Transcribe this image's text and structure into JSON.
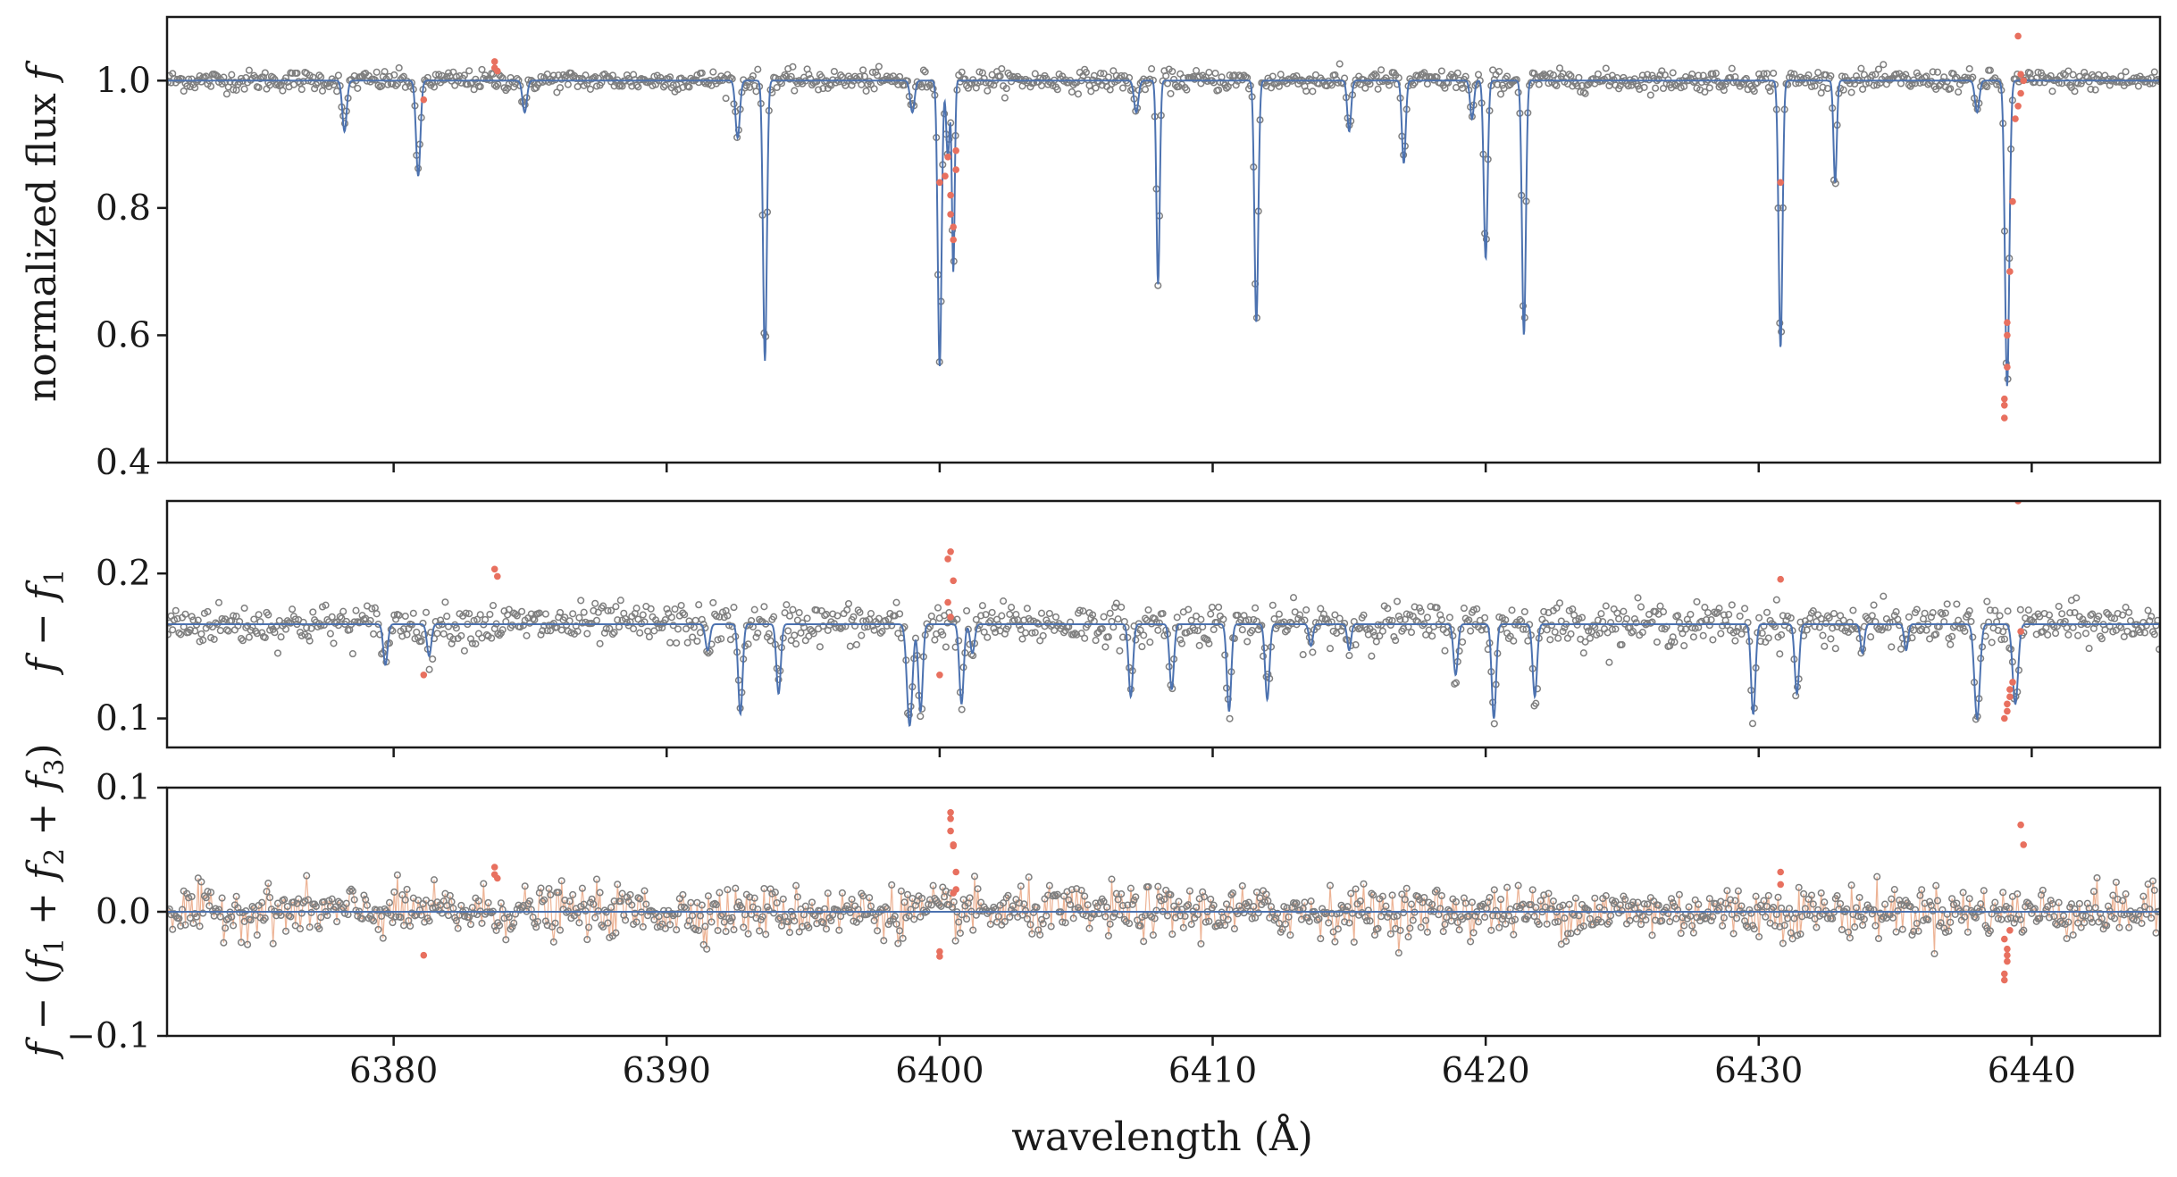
{
  "chart_data": [
    {
      "panel": "top",
      "type": "line",
      "ylabel_text": "normalized flux",
      "ylabel_var": "f",
      "xlim": [
        6371.7,
        6444.7
      ],
      "ylim": [
        0.4,
        1.1
      ],
      "yticks": [
        0.4,
        0.6,
        0.8,
        1.0
      ],
      "ytick_labels": [
        "0.4",
        "0.6",
        "0.8",
        "1.0"
      ],
      "continuum": 1.0,
      "lines": [
        {
          "x": 6378.2,
          "depth": 0.08,
          "width": 0.08
        },
        {
          "x": 6380.9,
          "depth": 0.15,
          "width": 0.08
        },
        {
          "x": 6384.8,
          "depth": 0.05,
          "width": 0.08
        },
        {
          "x": 6392.6,
          "depth": 0.09,
          "width": 0.08
        },
        {
          "x": 6393.6,
          "depth": 0.44,
          "width": 0.07
        },
        {
          "x": 6399.0,
          "depth": 0.05,
          "width": 0.08
        },
        {
          "x": 6400.0,
          "depth": 0.45,
          "width": 0.07
        },
        {
          "x": 6400.3,
          "depth": 0.12,
          "width": 0.06
        },
        {
          "x": 6400.5,
          "depth": 0.3,
          "width": 0.05
        },
        {
          "x": 6407.2,
          "depth": 0.05,
          "width": 0.08
        },
        {
          "x": 6408.0,
          "depth": 0.32,
          "width": 0.06
        },
        {
          "x": 6411.6,
          "depth": 0.38,
          "width": 0.07
        },
        {
          "x": 6415.0,
          "depth": 0.08,
          "width": 0.07
        },
        {
          "x": 6417.0,
          "depth": 0.13,
          "width": 0.07
        },
        {
          "x": 6419.5,
          "depth": 0.06,
          "width": 0.07
        },
        {
          "x": 6420.0,
          "depth": 0.28,
          "width": 0.07
        },
        {
          "x": 6421.4,
          "depth": 0.4,
          "width": 0.07
        },
        {
          "x": 6430.8,
          "depth": 0.42,
          "width": 0.07
        },
        {
          "x": 6432.8,
          "depth": 0.16,
          "width": 0.06
        },
        {
          "x": 6438.0,
          "depth": 0.05,
          "width": 0.08
        },
        {
          "x": 6439.1,
          "depth": 0.48,
          "width": 0.08
        }
      ],
      "noise": 0.008,
      "outliers": [
        {
          "x": 6381.1,
          "y": 0.97
        },
        {
          "x": 6383.7,
          "y": 1.03
        },
        {
          "x": 6383.7,
          "y": 1.02
        },
        {
          "x": 6383.8,
          "y": 1.015
        },
        {
          "x": 6400.0,
          "y": 0.84
        },
        {
          "x": 6400.2,
          "y": 0.85
        },
        {
          "x": 6400.3,
          "y": 0.88
        },
        {
          "x": 6400.4,
          "y": 0.82
        },
        {
          "x": 6400.4,
          "y": 0.79
        },
        {
          "x": 6400.5,
          "y": 0.77
        },
        {
          "x": 6400.5,
          "y": 0.75
        },
        {
          "x": 6400.6,
          "y": 0.86
        },
        {
          "x": 6400.6,
          "y": 0.89
        },
        {
          "x": 6430.8,
          "y": 0.84
        },
        {
          "x": 6439.0,
          "y": 0.47
        },
        {
          "x": 6439.0,
          "y": 0.49
        },
        {
          "x": 6439.0,
          "y": 0.5
        },
        {
          "x": 6439.1,
          "y": 0.55
        },
        {
          "x": 6439.1,
          "y": 0.6
        },
        {
          "x": 6439.1,
          "y": 0.62
        },
        {
          "x": 6439.2,
          "y": 0.7
        },
        {
          "x": 6439.3,
          "y": 0.81
        },
        {
          "x": 6439.4,
          "y": 0.94
        },
        {
          "x": 6439.5,
          "y": 0.96
        },
        {
          "x": 6439.6,
          "y": 0.98
        },
        {
          "x": 6439.6,
          "y": 1.01
        },
        {
          "x": 6439.5,
          "y": 1.07
        },
        {
          "x": 6439.7,
          "y": 1.0
        }
      ]
    },
    {
      "panel": "middle",
      "type": "line",
      "ylabel_var": "f",
      "ylabel_sub": "1",
      "xlim": [
        6371.7,
        6444.7
      ],
      "ylim": [
        0.08,
        0.25
      ],
      "yticks": [
        0.1,
        0.2
      ],
      "ytick_labels": [
        "0.1",
        "0.2"
      ],
      "continuum": 0.165,
      "lines": [
        {
          "x": 6379.7,
          "depth": 0.028,
          "width": 0.08
        },
        {
          "x": 6381.3,
          "depth": 0.022,
          "width": 0.08
        },
        {
          "x": 6391.5,
          "depth": 0.018,
          "width": 0.08
        },
        {
          "x": 6392.7,
          "depth": 0.062,
          "width": 0.08
        },
        {
          "x": 6394.1,
          "depth": 0.048,
          "width": 0.08
        },
        {
          "x": 6398.9,
          "depth": 0.07,
          "width": 0.1
        },
        {
          "x": 6399.3,
          "depth": 0.06,
          "width": 0.08
        },
        {
          "x": 6400.8,
          "depth": 0.055,
          "width": 0.08
        },
        {
          "x": 6401.2,
          "depth": 0.02,
          "width": 0.08
        },
        {
          "x": 6407.0,
          "depth": 0.05,
          "width": 0.08
        },
        {
          "x": 6408.5,
          "depth": 0.045,
          "width": 0.08
        },
        {
          "x": 6410.6,
          "depth": 0.06,
          "width": 0.08
        },
        {
          "x": 6412.0,
          "depth": 0.052,
          "width": 0.08
        },
        {
          "x": 6413.6,
          "depth": 0.015,
          "width": 0.07
        },
        {
          "x": 6415.0,
          "depth": 0.018,
          "width": 0.07
        },
        {
          "x": 6418.9,
          "depth": 0.035,
          "width": 0.08
        },
        {
          "x": 6420.3,
          "depth": 0.065,
          "width": 0.08
        },
        {
          "x": 6421.8,
          "depth": 0.05,
          "width": 0.08
        },
        {
          "x": 6429.8,
          "depth": 0.062,
          "width": 0.08
        },
        {
          "x": 6431.4,
          "depth": 0.048,
          "width": 0.08
        },
        {
          "x": 6433.8,
          "depth": 0.02,
          "width": 0.07
        },
        {
          "x": 6435.4,
          "depth": 0.018,
          "width": 0.07
        },
        {
          "x": 6438.0,
          "depth": 0.065,
          "width": 0.1
        },
        {
          "x": 6439.4,
          "depth": 0.055,
          "width": 0.1
        }
      ],
      "noise": 0.007,
      "outliers": [
        {
          "x": 6381.1,
          "y": 0.13
        },
        {
          "x": 6383.7,
          "y": 0.203
        },
        {
          "x": 6383.8,
          "y": 0.198
        },
        {
          "x": 6400.0,
          "y": 0.13
        },
        {
          "x": 6400.3,
          "y": 0.21
        },
        {
          "x": 6400.4,
          "y": 0.215
        },
        {
          "x": 6400.3,
          "y": 0.18
        },
        {
          "x": 6400.4,
          "y": 0.17
        },
        {
          "x": 6400.5,
          "y": 0.195
        },
        {
          "x": 6430.8,
          "y": 0.196
        },
        {
          "x": 6439.0,
          "y": 0.1
        },
        {
          "x": 6439.1,
          "y": 0.105
        },
        {
          "x": 6439.1,
          "y": 0.11
        },
        {
          "x": 6439.2,
          "y": 0.115
        },
        {
          "x": 6439.2,
          "y": 0.12
        },
        {
          "x": 6439.3,
          "y": 0.125
        },
        {
          "x": 6439.5,
          "y": 0.25
        },
        {
          "x": 6439.6,
          "y": 0.16
        }
      ]
    },
    {
      "panel": "bottom",
      "type": "line",
      "ylabel_var": "f",
      "xlim": [
        6371.7,
        6444.7
      ],
      "ylim": [
        -0.1,
        0.1
      ],
      "yticks": [
        -0.1,
        0.0,
        0.1
      ],
      "ytick_labels": [
        "−0.1",
        "0.0",
        "0.1"
      ],
      "continuum": 0.0,
      "lines": [],
      "noise": 0.01,
      "outliers": [
        {
          "x": 6381.1,
          "y": -0.035
        },
        {
          "x": 6383.7,
          "y": 0.036
        },
        {
          "x": 6383.7,
          "y": 0.03
        },
        {
          "x": 6383.8,
          "y": 0.027
        },
        {
          "x": 6400.0,
          "y": -0.032
        },
        {
          "x": 6400.0,
          "y": -0.036
        },
        {
          "x": 6400.4,
          "y": 0.075
        },
        {
          "x": 6400.4,
          "y": 0.08
        },
        {
          "x": 6400.4,
          "y": 0.065
        },
        {
          "x": 6400.5,
          "y": 0.054
        },
        {
          "x": 6400.5,
          "y": 0.053
        },
        {
          "x": 6400.6,
          "y": 0.032
        },
        {
          "x": 6400.6,
          "y": 0.018
        },
        {
          "x": 6400.5,
          "y": 0.015
        },
        {
          "x": 6430.8,
          "y": 0.032
        },
        {
          "x": 6430.8,
          "y": 0.022
        },
        {
          "x": 6439.0,
          "y": -0.055
        },
        {
          "x": 6439.0,
          "y": -0.05
        },
        {
          "x": 6439.1,
          "y": -0.04
        },
        {
          "x": 6439.1,
          "y": -0.035
        },
        {
          "x": 6439.1,
          "y": -0.03
        },
        {
          "x": 6439.0,
          "y": -0.022
        },
        {
          "x": 6439.2,
          "y": -0.015
        },
        {
          "x": 6439.6,
          "y": 0.07
        },
        {
          "x": 6439.7,
          "y": 0.054
        }
      ]
    }
  ],
  "shared_xaxis": {
    "label": "wavelength (Å)",
    "xticks": [
      6380,
      6390,
      6400,
      6410,
      6420,
      6430,
      6440
    ],
    "xtick_labels": [
      "6380",
      "6390",
      "6400",
      "6410",
      "6420",
      "6430",
      "6440"
    ]
  },
  "colors": {
    "model": "#4c72b0",
    "data": "#7f7f7f",
    "outlier": "#e8705f",
    "residual_link": "#e8a07a",
    "axis": "#1a1a1a"
  }
}
